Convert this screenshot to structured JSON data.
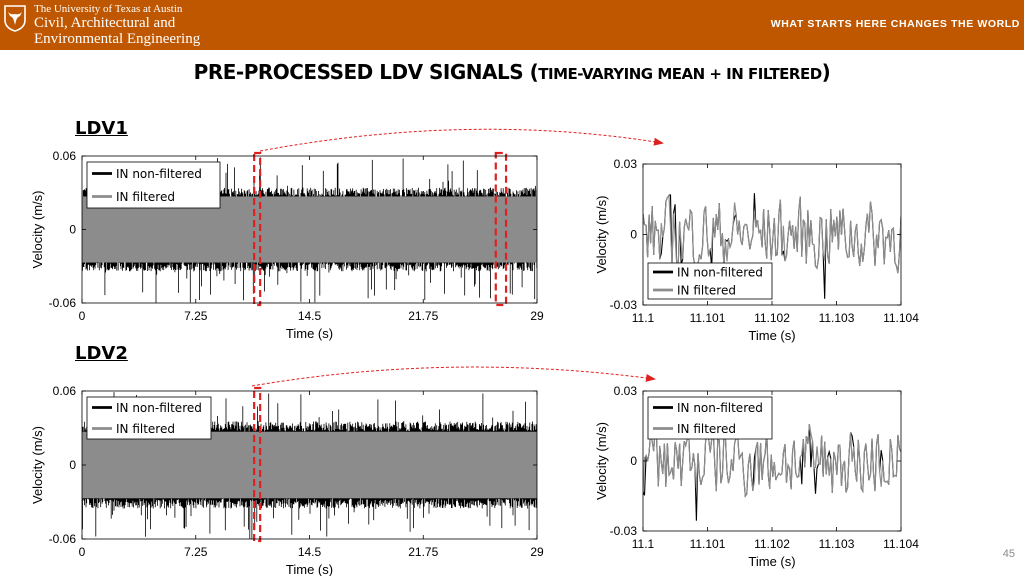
{
  "header": {
    "university": "The University of Texas at Austin",
    "department_line1": "Civil, Architectural and",
    "department_line2": "Environmental Engineering",
    "tagline": "WHAT STARTS HERE CHANGES THE WORLD",
    "logo_icon": "longhorn-logo-icon"
  },
  "slide": {
    "title_main": "PRE-PROCESSED LDV SIGNALS (",
    "title_small": "TIME-VARYING MEAN + IN FILTERED",
    "title_close": ")",
    "section_ldv1": "LDV1",
    "section_ldv2": "LDV2",
    "page_number": "45"
  },
  "colors": {
    "banner": "#bf5700",
    "non_filtered": "#000000",
    "filtered": "#8c8c8c",
    "highlight": "#e02020"
  },
  "chart_data": [
    {
      "id": "ldv1-full",
      "type": "line",
      "xlabel": "Time (s)",
      "ylabel": "Velocity (m/s)",
      "xlim": [
        0,
        29
      ],
      "ylim": [
        -0.06,
        0.06
      ],
      "xticks": [
        "0",
        "7.25",
        "14.5",
        "21.75",
        "29"
      ],
      "yticks": [
        "-0.06",
        "0",
        "0.06"
      ],
      "legend_position": "top-left",
      "series": [
        {
          "name": "IN non-filtered",
          "envelope": [
            -0.06,
            0.06
          ],
          "typical_band": [
            -0.032,
            0.032
          ]
        },
        {
          "name": "IN filtered",
          "envelope": [
            -0.027,
            0.027
          ]
        }
      ],
      "highlight_windows": [
        [
          11.1,
          11.104
        ],
        [
          26.5,
          26.9
        ]
      ]
    },
    {
      "id": "ldv1-zoom",
      "type": "line",
      "xlabel": "Time (s)",
      "ylabel": "Velocity (m/s)",
      "xlim": [
        11.1,
        11.104
      ],
      "ylim": [
        -0.03,
        0.03
      ],
      "xticks": [
        "11.1",
        "11.101",
        "11.102",
        "11.103",
        "11.104"
      ],
      "yticks": [
        "-0.03",
        "0",
        "0.03"
      ],
      "legend_position": "bottom-left",
      "series": [
        {
          "name": "IN non-filtered"
        },
        {
          "name": "IN filtered"
        }
      ]
    },
    {
      "id": "ldv2-full",
      "type": "line",
      "xlabel": "Time (s)",
      "ylabel": "Velocity (m/s)",
      "xlim": [
        0,
        29
      ],
      "ylim": [
        -0.06,
        0.06
      ],
      "xticks": [
        "0",
        "7.25",
        "14.5",
        "21.75",
        "29"
      ],
      "yticks": [
        "-0.06",
        "0",
        "0.06"
      ],
      "legend_position": "top-left",
      "series": [
        {
          "name": "IN non-filtered",
          "envelope": [
            -0.06,
            0.06
          ],
          "typical_band": [
            -0.033,
            0.033
          ]
        },
        {
          "name": "IN filtered",
          "envelope": [
            -0.027,
            0.027
          ]
        }
      ],
      "highlight_windows": [
        [
          11.1,
          11.104
        ]
      ]
    },
    {
      "id": "ldv2-zoom",
      "type": "line",
      "xlabel": "Time (s)",
      "ylabel": "Velocity (m/s)",
      "xlim": [
        11.1,
        11.104
      ],
      "ylim": [
        -0.03,
        0.03
      ],
      "xticks": [
        "11.1",
        "11.101",
        "11.102",
        "11.103",
        "11.104"
      ],
      "yticks": [
        "-0.03",
        "0",
        "0.03"
      ],
      "legend_position": "top-left",
      "series": [
        {
          "name": "IN non-filtered"
        },
        {
          "name": "IN filtered"
        }
      ]
    }
  ]
}
